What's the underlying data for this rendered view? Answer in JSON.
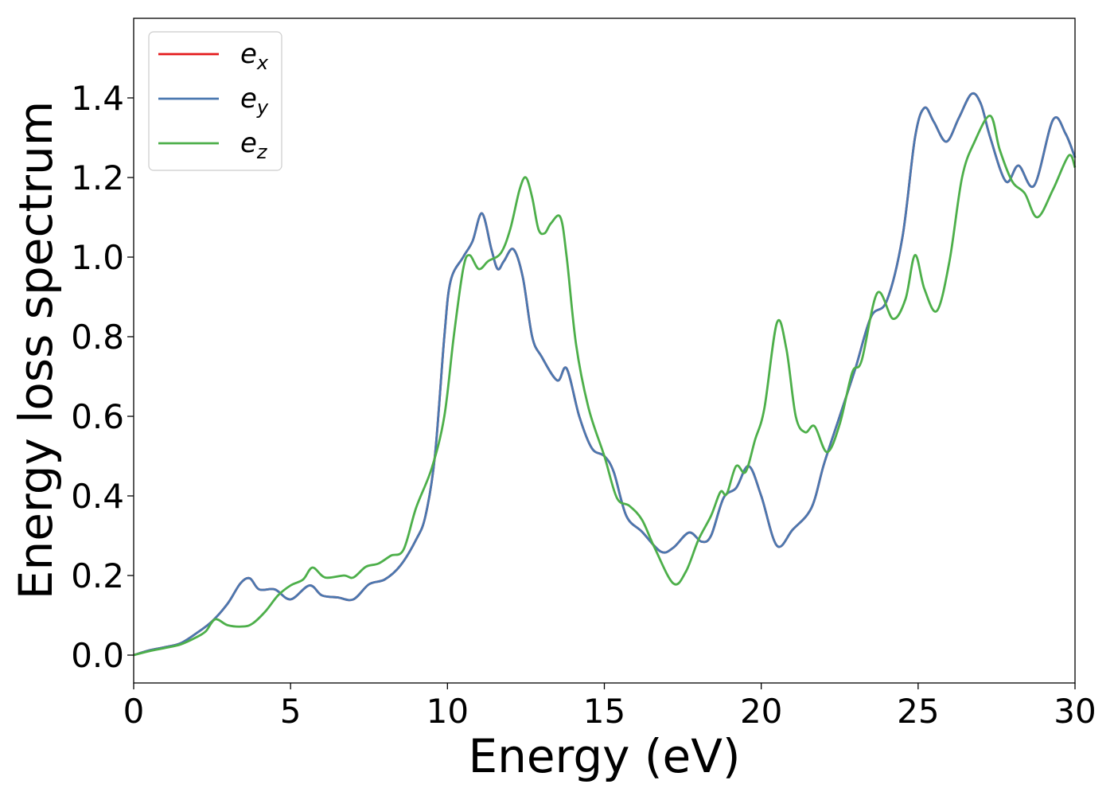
{
  "chart_data": {
    "type": "line",
    "xlabel": "Energy (eV)",
    "ylabel": "Energy loss spectrum",
    "xlim": [
      0,
      30
    ],
    "ylim": [
      -0.07,
      1.6
    ],
    "xticks": [
      0,
      5,
      10,
      15,
      20,
      25,
      30
    ],
    "yticks": [
      0.0,
      0.2,
      0.4,
      0.6,
      0.8,
      1.0,
      1.2,
      1.4
    ],
    "xtick_labels": [
      "0",
      "5",
      "10",
      "15",
      "20",
      "25",
      "30"
    ],
    "ytick_labels": [
      "0.0",
      "0.2",
      "0.4",
      "0.6",
      "0.8",
      "1.0",
      "1.2",
      "1.4"
    ],
    "grid": false,
    "legend_position": "top-left",
    "series": [
      {
        "name": "e_x",
        "legend_base": "e",
        "legend_sub": "x",
        "color": "#e41a1c",
        "points": [
          [
            0,
            0
          ],
          [
            0.5,
            0.012
          ],
          [
            1,
            0.02
          ],
          [
            1.5,
            0.03
          ],
          [
            2,
            0.055
          ],
          [
            2.5,
            0.085
          ],
          [
            3,
            0.13
          ],
          [
            3.4,
            0.18
          ],
          [
            3.7,
            0.193
          ],
          [
            4,
            0.165
          ],
          [
            4.5,
            0.165
          ],
          [
            5,
            0.14
          ],
          [
            5.6,
            0.175
          ],
          [
            6,
            0.15
          ],
          [
            6.5,
            0.145
          ],
          [
            7,
            0.14
          ],
          [
            7.5,
            0.178
          ],
          [
            8,
            0.19
          ],
          [
            8.5,
            0.225
          ],
          [
            9,
            0.29
          ],
          [
            9.3,
            0.35
          ],
          [
            9.6,
            0.5
          ],
          [
            9.9,
            0.8
          ],
          [
            10.1,
            0.94
          ],
          [
            10.5,
            1.0
          ],
          [
            10.8,
            1.04
          ],
          [
            11.1,
            1.11
          ],
          [
            11.4,
            1.02
          ],
          [
            11.6,
            0.97
          ],
          [
            11.8,
            0.99
          ],
          [
            12.1,
            1.02
          ],
          [
            12.4,
            0.95
          ],
          [
            12.7,
            0.8
          ],
          [
            13,
            0.75
          ],
          [
            13.5,
            0.69
          ],
          [
            13.8,
            0.72
          ],
          [
            14.2,
            0.6
          ],
          [
            14.6,
            0.52
          ],
          [
            15,
            0.5
          ],
          [
            15.3,
            0.46
          ],
          [
            15.7,
            0.35
          ],
          [
            16.2,
            0.31
          ],
          [
            16.8,
            0.26
          ],
          [
            17.2,
            0.27
          ],
          [
            17.7,
            0.308
          ],
          [
            18.1,
            0.285
          ],
          [
            18.4,
            0.3
          ],
          [
            18.8,
            0.395
          ],
          [
            19.2,
            0.42
          ],
          [
            19.6,
            0.475
          ],
          [
            20,
            0.4
          ],
          [
            20.5,
            0.275
          ],
          [
            21,
            0.315
          ],
          [
            21.6,
            0.37
          ],
          [
            22,
            0.48
          ],
          [
            22.5,
            0.6
          ],
          [
            23,
            0.72
          ],
          [
            23.5,
            0.85
          ],
          [
            24,
            0.89
          ],
          [
            24.5,
            1.05
          ],
          [
            24.9,
            1.3
          ],
          [
            25.2,
            1.375
          ],
          [
            25.5,
            1.34
          ],
          [
            25.9,
            1.29
          ],
          [
            26.3,
            1.35
          ],
          [
            26.7,
            1.41
          ],
          [
            27,
            1.385
          ],
          [
            27.3,
            1.3
          ],
          [
            27.8,
            1.19
          ],
          [
            28.2,
            1.23
          ],
          [
            28.7,
            1.18
          ],
          [
            29.3,
            1.345
          ],
          [
            29.7,
            1.31
          ],
          [
            30,
            1.25
          ]
        ]
      },
      {
        "name": "e_y",
        "legend_base": "e",
        "legend_sub": "y",
        "color": "#4a78b0",
        "points": [
          [
            0,
            0
          ],
          [
            0.5,
            0.012
          ],
          [
            1,
            0.02
          ],
          [
            1.5,
            0.03
          ],
          [
            2,
            0.055
          ],
          [
            2.5,
            0.085
          ],
          [
            3,
            0.13
          ],
          [
            3.4,
            0.18
          ],
          [
            3.7,
            0.193
          ],
          [
            4,
            0.165
          ],
          [
            4.5,
            0.165
          ],
          [
            5,
            0.14
          ],
          [
            5.6,
            0.175
          ],
          [
            6,
            0.15
          ],
          [
            6.5,
            0.145
          ],
          [
            7,
            0.14
          ],
          [
            7.5,
            0.178
          ],
          [
            8,
            0.19
          ],
          [
            8.5,
            0.225
          ],
          [
            9,
            0.29
          ],
          [
            9.3,
            0.35
          ],
          [
            9.6,
            0.5
          ],
          [
            9.9,
            0.8
          ],
          [
            10.1,
            0.94
          ],
          [
            10.5,
            1.0
          ],
          [
            10.8,
            1.04
          ],
          [
            11.1,
            1.11
          ],
          [
            11.4,
            1.02
          ],
          [
            11.6,
            0.97
          ],
          [
            11.8,
            0.99
          ],
          [
            12.1,
            1.02
          ],
          [
            12.4,
            0.95
          ],
          [
            12.7,
            0.8
          ],
          [
            13,
            0.75
          ],
          [
            13.5,
            0.69
          ],
          [
            13.8,
            0.72
          ],
          [
            14.2,
            0.6
          ],
          [
            14.6,
            0.52
          ],
          [
            15,
            0.5
          ],
          [
            15.3,
            0.46
          ],
          [
            15.7,
            0.35
          ],
          [
            16.2,
            0.31
          ],
          [
            16.8,
            0.26
          ],
          [
            17.2,
            0.27
          ],
          [
            17.7,
            0.308
          ],
          [
            18.1,
            0.285
          ],
          [
            18.4,
            0.3
          ],
          [
            18.8,
            0.395
          ],
          [
            19.2,
            0.42
          ],
          [
            19.6,
            0.475
          ],
          [
            20,
            0.4
          ],
          [
            20.5,
            0.275
          ],
          [
            21,
            0.315
          ],
          [
            21.6,
            0.37
          ],
          [
            22,
            0.48
          ],
          [
            22.5,
            0.6
          ],
          [
            23,
            0.72
          ],
          [
            23.5,
            0.85
          ],
          [
            24,
            0.89
          ],
          [
            24.5,
            1.05
          ],
          [
            24.9,
            1.3
          ],
          [
            25.2,
            1.375
          ],
          [
            25.5,
            1.34
          ],
          [
            25.9,
            1.29
          ],
          [
            26.3,
            1.35
          ],
          [
            26.7,
            1.41
          ],
          [
            27,
            1.385
          ],
          [
            27.3,
            1.3
          ],
          [
            27.8,
            1.19
          ],
          [
            28.2,
            1.23
          ],
          [
            28.7,
            1.18
          ],
          [
            29.3,
            1.345
          ],
          [
            29.7,
            1.31
          ],
          [
            30,
            1.25
          ]
        ]
      },
      {
        "name": "e_z",
        "legend_base": "e",
        "legend_sub": "z",
        "color": "#4daf4a",
        "points": [
          [
            0,
            0
          ],
          [
            0.5,
            0.01
          ],
          [
            1,
            0.018
          ],
          [
            1.5,
            0.027
          ],
          [
            2,
            0.045
          ],
          [
            2.3,
            0.06
          ],
          [
            2.6,
            0.09
          ],
          [
            3,
            0.075
          ],
          [
            3.5,
            0.072
          ],
          [
            3.8,
            0.08
          ],
          [
            4.2,
            0.11
          ],
          [
            4.6,
            0.15
          ],
          [
            5,
            0.175
          ],
          [
            5.4,
            0.19
          ],
          [
            5.7,
            0.22
          ],
          [
            6.1,
            0.195
          ],
          [
            6.7,
            0.2
          ],
          [
            7,
            0.195
          ],
          [
            7.4,
            0.222
          ],
          [
            7.8,
            0.23
          ],
          [
            8.2,
            0.25
          ],
          [
            8.6,
            0.265
          ],
          [
            9,
            0.37
          ],
          [
            9.5,
            0.47
          ],
          [
            9.9,
            0.6
          ],
          [
            10.2,
            0.8
          ],
          [
            10.5,
            0.97
          ],
          [
            10.7,
            1.005
          ],
          [
            11,
            0.97
          ],
          [
            11.3,
            0.99
          ],
          [
            11.7,
            1.01
          ],
          [
            12,
            1.07
          ],
          [
            12.3,
            1.17
          ],
          [
            12.5,
            1.2
          ],
          [
            12.7,
            1.15
          ],
          [
            12.9,
            1.07
          ],
          [
            13.1,
            1.06
          ],
          [
            13.3,
            1.085
          ],
          [
            13.6,
            1.1
          ],
          [
            13.8,
            1.0
          ],
          [
            14.1,
            0.78
          ],
          [
            14.5,
            0.62
          ],
          [
            15,
            0.5
          ],
          [
            15.4,
            0.395
          ],
          [
            15.8,
            0.375
          ],
          [
            16.2,
            0.34
          ],
          [
            16.6,
            0.27
          ],
          [
            17.2,
            0.18
          ],
          [
            17.6,
            0.21
          ],
          [
            18,
            0.29
          ],
          [
            18.4,
            0.35
          ],
          [
            18.7,
            0.41
          ],
          [
            18.9,
            0.405
          ],
          [
            19.2,
            0.475
          ],
          [
            19.5,
            0.46
          ],
          [
            19.8,
            0.54
          ],
          [
            20.1,
            0.62
          ],
          [
            20.5,
            0.835
          ],
          [
            20.8,
            0.77
          ],
          [
            21.1,
            0.6
          ],
          [
            21.4,
            0.56
          ],
          [
            21.7,
            0.575
          ],
          [
            22.1,
            0.51
          ],
          [
            22.5,
            0.58
          ],
          [
            22.9,
            0.71
          ],
          [
            23.2,
            0.74
          ],
          [
            23.7,
            0.91
          ],
          [
            24.2,
            0.845
          ],
          [
            24.6,
            0.895
          ],
          [
            24.9,
            1.005
          ],
          [
            25.2,
            0.92
          ],
          [
            25.6,
            0.865
          ],
          [
            26,
            0.99
          ],
          [
            26.4,
            1.2
          ],
          [
            26.8,
            1.29
          ],
          [
            27.3,
            1.355
          ],
          [
            27.6,
            1.27
          ],
          [
            28,
            1.19
          ],
          [
            28.4,
            1.16
          ],
          [
            28.8,
            1.1
          ],
          [
            29.3,
            1.17
          ],
          [
            29.8,
            1.255
          ],
          [
            30,
            1.225
          ]
        ]
      }
    ]
  }
}
